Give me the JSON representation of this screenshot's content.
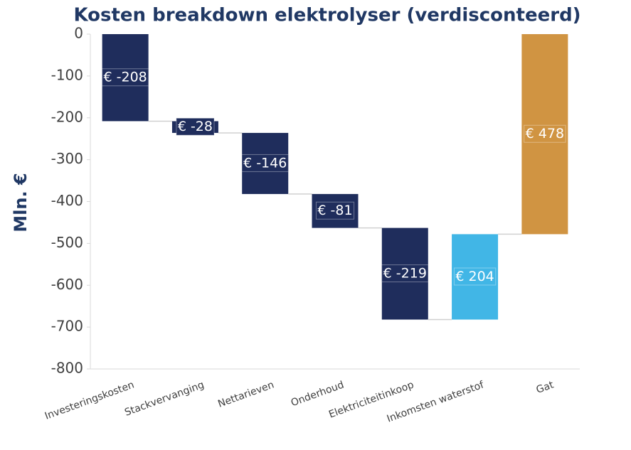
{
  "chart_data": {
    "type": "waterfall",
    "title": "Kosten breakdown elektrolyser (verdisconteerd)",
    "ylabel": "Mln. €",
    "categories": [
      "Investeringskosten",
      "Stackvervanging",
      "Nettarieven",
      "Onderhoud",
      "Elektriciteitinkoop",
      "Inkomsten waterstof",
      "Gat"
    ],
    "values": [
      -208,
      -28,
      -146,
      -81,
      -219,
      204,
      478
    ],
    "value_labels": [
      "€ -208",
      "€ -28",
      "€ -146",
      "€ -81",
      "€ -219",
      "€ 204",
      "€ 478"
    ],
    "colors": [
      "#1f2d5c",
      "#1f2d5c",
      "#1f2d5c",
      "#1f2d5c",
      "#1f2d5c",
      "#41b6e6",
      "#d09442"
    ],
    "ylim": [
      -800,
      0
    ],
    "yticks": [
      0,
      -100,
      -200,
      -300,
      -400,
      -500,
      -600,
      -700,
      -800
    ]
  }
}
